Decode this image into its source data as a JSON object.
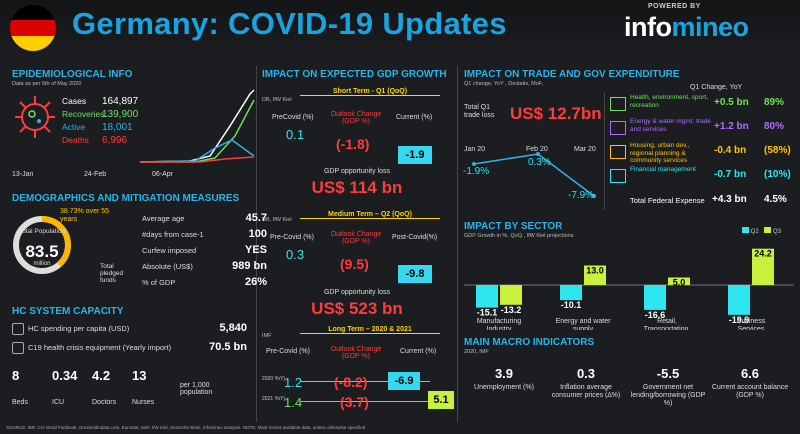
{
  "header": {
    "title": "Germany: COVID-19 Updates",
    "powered_by": "POWERED BY",
    "logo_a": "info",
    "logo_b": "mineo"
  },
  "epi": {
    "title": "EPIDEMIOLOGICAL INFO",
    "asof": "Data as per 6th of May 2020",
    "rows": [
      {
        "label": "Cases",
        "value": "164,897",
        "color": "#ffffff"
      },
      {
        "label": "Recoveries",
        "value": "139,900",
        "color": "#6ee05a"
      },
      {
        "label": "Active",
        "value": "18,001",
        "color": "#2bb3ea"
      },
      {
        "label": "Deaths",
        "value": "6,996",
        "color": "#ff3b3b"
      }
    ],
    "dates": [
      "13-Jan",
      "24-Feb",
      "06-Apr"
    ]
  },
  "demo": {
    "title": "DEMOGRAPHICS AND MITIGATION MEASURES",
    "pct": "38.73% over 55 years",
    "pct_value": 38.73,
    "pop_label": "Total Population",
    "pop": "83.5",
    "pop_unit": "million",
    "rows": [
      {
        "label": "Average age",
        "value": "45.7"
      },
      {
        "label": "#days from case-1",
        "value": "100"
      },
      {
        "label": "Curfew imposed",
        "value": "YES"
      },
      {
        "label": "Absolute (US$)",
        "value": "989 bn"
      },
      {
        "label": "% of GDP",
        "value": "26%"
      }
    ],
    "funds_label": "Total pledged funds"
  },
  "hc": {
    "title": "HC SYSTEM CAPACITY",
    "rows": [
      {
        "label": "HC spending per capita (USD)",
        "value": "5,840"
      },
      {
        "label": "C19 health crisis equipment (Yearly import)",
        "value": "70.5 bn"
      }
    ],
    "beds": [
      {
        "v": "8",
        "l": "Beds"
      },
      {
        "v": "0.34",
        "l": "ICU"
      },
      {
        "v": "4.2",
        "l": "Doctors"
      },
      {
        "v": "13",
        "l": "Nurses"
      }
    ],
    "per": "per 1,000 population"
  },
  "gdp": {
    "title": "IMPACT ON EXPECTED GDP GROWTH",
    "src1": "DB, IfW Kiel",
    "short": "Short Term - Q1 (QoQ)",
    "cols": [
      "PreCovid (%)",
      "Outlook Change (GDP %)",
      "Current (%)"
    ],
    "s_pre": "0.1",
    "s_chg": "(-1.8)",
    "s_cur": "-1.9",
    "loss_label": "GDP opportunity loss",
    "s_loss": "US$ 114 bn",
    "src2": "DB, IfW Kiel",
    "medium": "Medium Term – Q2 (QoQ)",
    "mcols": [
      "Pre-Covid (%)",
      "Outlook Change (GDP %)",
      "Post-Covid(%)"
    ],
    "m_pre": "0.3",
    "m_chg": "(9.5)",
    "m_cur": "-9.8",
    "m_loss": "US$ 523 bn",
    "src3": "IMF",
    "long": "Long Term – 2020 & 2021",
    "lcols": [
      "Pre-Covid (%)",
      "Outlook Change (GDP %)",
      "Current (%)"
    ],
    "l_years": [
      "2020 YoY)",
      "2021 YoY)"
    ],
    "l_pre": [
      "1.2",
      "1.4"
    ],
    "l_chg": [
      "(-8.2)",
      "(3.7)"
    ],
    "l_cur": [
      "-6.9",
      "5.1"
    ]
  },
  "trade": {
    "title": "IMPACT ON TRADE AND GOV EXPENDITURE",
    "sub": "Q1 change, YoY , Destatis, MoF,",
    "q1": "Q1 Change, YoY",
    "loss_label": "Total Q1 trade loss",
    "loss": "US$ 12.7bn",
    "months": [
      "Jan 20",
      "Feb 20",
      "Mar 20"
    ],
    "pts": [
      "-1.9%",
      "0.3%",
      "-7.9%"
    ],
    "rows": [
      {
        "label": "Health, environment, sport, recreation",
        "v": "+0.5 bn",
        "p": "89%",
        "c": "#6ee05a"
      },
      {
        "label": "Energy & water mgmt. trade and services",
        "v": "+1.2 bn",
        "p": "80%",
        "c": "#b06cff"
      },
      {
        "label": "Housing, urban dev., regional planning & community services",
        "v": "-0.4 bn",
        "p": "(58%)",
        "c": "#ffc400"
      },
      {
        "label": "Financial management",
        "v": "-0.7 bn",
        "p": "(10%)",
        "c": "#2ee6f0"
      }
    ],
    "total_label": "Total Federal Expense",
    "total_v": "+4.3 bn",
    "total_p": "4.5%"
  },
  "sector": {
    "title": "IMPACT BY SECTOR",
    "sub": "GDP Growth in %, QoQ., IfW Kiel  projections",
    "legend": [
      "Q2",
      "Q3"
    ],
    "items": [
      {
        "name": "Manufacturing Industry",
        "q2": "-15.1",
        "q3": "-13.2"
      },
      {
        "name": "Energy and water supply",
        "q2": "-10.1",
        "q3": "13.0"
      },
      {
        "name": "Retail, Transportation, Hospitality",
        "q2": "-16.6",
        "q3": "5.0"
      },
      {
        "name": "Business Services Providers",
        "q2": "-19.9",
        "q3": "24.2"
      }
    ]
  },
  "macro": {
    "title": "MAIN MACRO INDICATORS",
    "sub": "2020, IMF",
    "items": [
      {
        "v": "3.9",
        "l": "Unemployment (%)"
      },
      {
        "v": "0.3",
        "l": "Inflation average consumer prices (∆%)"
      },
      {
        "v": "-5.5",
        "l": "Government net lending/borrowing (GDP %)"
      },
      {
        "v": "6.6",
        "l": "Current account balance (GDP %)"
      }
    ]
  },
  "source": "SOURCE: IMF, CIA Word Factbook, Ourworldindata.com, Eurostat, MoF, IfW Kiel, Deutsche Bank, Infomineo analysis. NOTE: Most recent available data, unless otherwise specified"
}
